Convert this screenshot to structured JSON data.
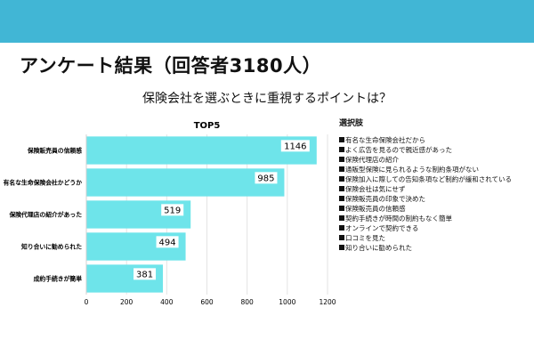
{
  "colors": {
    "header_band": "#41b6d5",
    "bar": "#6ee4ea",
    "bar_label_bg": "#ffffff"
  },
  "title": "アンケート結果（回答者3180人）",
  "subtitle": "保険会社を選ぶときに重視するポイントは？",
  "chart_data": {
    "type": "bar",
    "orientation": "horizontal",
    "title": "TOP5",
    "categories": [
      "保険販売員の信頼感",
      "有名な生命保険会社かどうか",
      "保険代理店の紹介があった",
      "知り合いに勧められた",
      "成約手続きが簡単"
    ],
    "values": [
      1146,
      985,
      519,
      494,
      381
    ],
    "xlim": [
      0,
      1200
    ],
    "xticks": [
      0,
      200,
      400,
      600,
      800,
      1000,
      1200
    ],
    "xlabel": "",
    "ylabel": "",
    "grid": true
  },
  "legend": {
    "title": "選択肢",
    "items": [
      "有名な生命保険会社だから",
      "よく広告を見るので親近感があった",
      "保険代理店の紹介",
      "通販型保険に見られるような制約条項がない",
      "保険加入に際しての告知条項など制約が緩和されている",
      "保険会社は気にせず",
      "保険販売員の印象で決めた",
      "保険販売員の信頼感",
      "契約手続きが時間の制約もなく簡単",
      "オンラインで契約できる",
      "口コミを見た",
      "知り合いに勧められた"
    ]
  }
}
